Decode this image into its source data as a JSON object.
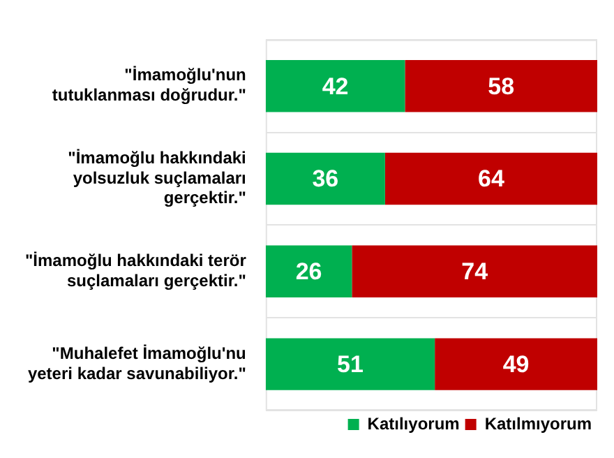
{
  "chart_data": {
    "type": "bar",
    "orientation": "horizontal",
    "stacked": true,
    "categories": [
      "\"İmamoğlu'nun tutuklanması doğrudur.\"",
      "\"İmamoğlu hakkındaki yolsuzluk suçlamaları gerçektir.\"",
      "\"İmamoğlu hakkındaki terör suçlamaları gerçektir.\"",
      "\"Muhalefet İmamoğlu'nu yeteri kadar savunabiliyor.\""
    ],
    "series": [
      {
        "name": "Katılıyorum",
        "color": "#00b050",
        "values": [
          42,
          36,
          26,
          51
        ]
      },
      {
        "name": "Katılmıyorum",
        "color": "#c00000",
        "values": [
          58,
          64,
          74,
          49
        ]
      }
    ],
    "xlim": [
      0,
      100
    ],
    "tick_labels": "y",
    "data_labels": true,
    "legend": "bottom",
    "grid": "y"
  }
}
